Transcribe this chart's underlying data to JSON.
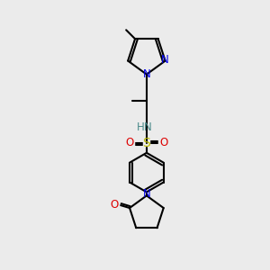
{
  "bg_color": "#ebebeb",
  "black": "#000000",
  "blue": "#0000ee",
  "red": "#dd0000",
  "yellow": "#bbbb00",
  "teal": "#4a8a8a",
  "line_width": 1.5,
  "figsize": [
    3.0,
    3.0
  ],
  "dpi": 100,
  "xlim": [
    0,
    300
  ],
  "ylim": [
    0,
    300
  ]
}
